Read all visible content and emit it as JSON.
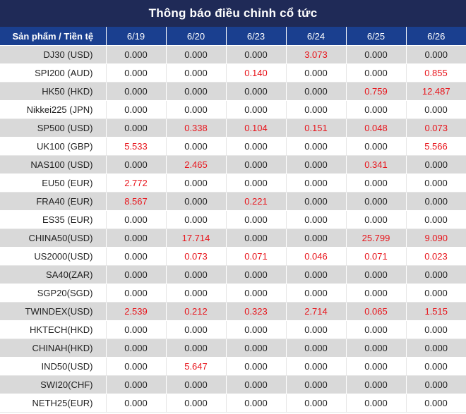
{
  "title": "Thông báo điều chỉnh cổ tức",
  "header": {
    "product_label": "Sản phẩm / Tiền tệ",
    "dates": [
      "6/19",
      "6/20",
      "6/23",
      "6/24",
      "6/25",
      "6/26"
    ]
  },
  "colors": {
    "title_bg": "#1f2a57",
    "header_bg": "#1a3f8f",
    "highlight_text": "#e8141b",
    "shade_row": "#d9d9d9"
  },
  "rows": [
    {
      "product": "DJ30 (USD)",
      "values": [
        "0.000",
        "0.000",
        "0.000",
        "3.073",
        "0.000",
        "0.000"
      ]
    },
    {
      "product": "SPI200 (AUD)",
      "values": [
        "0.000",
        "0.000",
        "0.140",
        "0.000",
        "0.000",
        "0.855"
      ]
    },
    {
      "product": "HK50 (HKD)",
      "values": [
        "0.000",
        "0.000",
        "0.000",
        "0.000",
        "0.759",
        "12.487"
      ]
    },
    {
      "product": "Nikkei225 (JPN)",
      "values": [
        "0.000",
        "0.000",
        "0.000",
        "0.000",
        "0.000",
        "0.000"
      ]
    },
    {
      "product": "SP500 (USD)",
      "values": [
        "0.000",
        "0.338",
        "0.104",
        "0.151",
        "0.048",
        "0.073"
      ]
    },
    {
      "product": "UK100 (GBP)",
      "values": [
        "5.533",
        "0.000",
        "0.000",
        "0.000",
        "0.000",
        "5.566"
      ]
    },
    {
      "product": "NAS100 (USD)",
      "values": [
        "0.000",
        "2.465",
        "0.000",
        "0.000",
        "0.341",
        "0.000"
      ]
    },
    {
      "product": "EU50 (EUR)",
      "values": [
        "2.772",
        "0.000",
        "0.000",
        "0.000",
        "0.000",
        "0.000"
      ]
    },
    {
      "product": "FRA40 (EUR)",
      "values": [
        "8.567",
        "0.000",
        "0.221",
        "0.000",
        "0.000",
        "0.000"
      ]
    },
    {
      "product": "ES35 (EUR)",
      "values": [
        "0.000",
        "0.000",
        "0.000",
        "0.000",
        "0.000",
        "0.000"
      ]
    },
    {
      "product": "CHINA50(USD)",
      "values": [
        "0.000",
        "17.714",
        "0.000",
        "0.000",
        "25.799",
        "9.090"
      ]
    },
    {
      "product": "US2000(USD)",
      "values": [
        "0.000",
        "0.073",
        "0.071",
        "0.046",
        "0.071",
        "0.023"
      ]
    },
    {
      "product": "SA40(ZAR)",
      "values": [
        "0.000",
        "0.000",
        "0.000",
        "0.000",
        "0.000",
        "0.000"
      ]
    },
    {
      "product": "SGP20(SGD)",
      "values": [
        "0.000",
        "0.000",
        "0.000",
        "0.000",
        "0.000",
        "0.000"
      ]
    },
    {
      "product": "TWINDEX(USD)",
      "values": [
        "2.539",
        "0.212",
        "0.323",
        "2.714",
        "0.065",
        "1.515"
      ]
    },
    {
      "product": "HKTECH(HKD)",
      "values": [
        "0.000",
        "0.000",
        "0.000",
        "0.000",
        "0.000",
        "0.000"
      ]
    },
    {
      "product": "CHINAH(HKD)",
      "values": [
        "0.000",
        "0.000",
        "0.000",
        "0.000",
        "0.000",
        "0.000"
      ]
    },
    {
      "product": "IND50(USD)",
      "values": [
        "0.000",
        "5.647",
        "0.000",
        "0.000",
        "0.000",
        "0.000"
      ]
    },
    {
      "product": "SWI20(CHF)",
      "values": [
        "0.000",
        "0.000",
        "0.000",
        "0.000",
        "0.000",
        "0.000"
      ]
    },
    {
      "product": "NETH25(EUR)",
      "values": [
        "0.000",
        "0.000",
        "0.000",
        "0.000",
        "0.000",
        "0.000"
      ]
    }
  ]
}
